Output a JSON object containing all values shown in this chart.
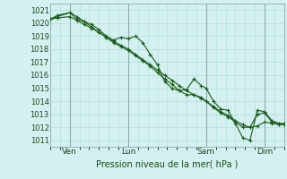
{
  "title": "",
  "xlabel": "Pression niveau de la mer( hPa )",
  "ylabel": "",
  "bg_color": "#d4f0f0",
  "grid_color": "#b0dede",
  "line_color": "#1a5c1a",
  "vline_color": "#8aacac",
  "ylim": [
    1010.5,
    1021.5
  ],
  "xlim": [
    0,
    96
  ],
  "yticks": [
    1011,
    1012,
    1013,
    1014,
    1015,
    1016,
    1017,
    1018,
    1019,
    1020,
    1021
  ],
  "xtick_positions": [
    8,
    32,
    64,
    88
  ],
  "xtick_labels": [
    "Ven",
    "Lun",
    "Sam",
    "Dim"
  ],
  "vlines": [
    8,
    32,
    64,
    88
  ],
  "series": [
    [
      0,
      1020.3,
      3,
      1020.4,
      8,
      1020.5,
      11,
      1020.2,
      14,
      1019.9,
      17,
      1019.6,
      20,
      1019.3,
      23,
      1018.9,
      26,
      1018.6,
      29,
      1018.3,
      32,
      1018.0,
      35,
      1017.6,
      38,
      1017.2,
      41,
      1016.8,
      44,
      1016.4,
      47,
      1016.0,
      50,
      1015.6,
      53,
      1015.2,
      56,
      1014.8,
      59,
      1014.5,
      62,
      1014.2,
      64,
      1014.0,
      67,
      1013.6,
      70,
      1013.2,
      73,
      1012.9,
      76,
      1012.5,
      79,
      1012.2,
      82,
      1012.0,
      85,
      1012.1,
      88,
      1012.4,
      91,
      1012.3,
      94,
      1012.2,
      96,
      1012.2
    ],
    [
      0,
      1020.3,
      3,
      1020.6,
      8,
      1020.8,
      11,
      1020.5,
      14,
      1020.1,
      17,
      1019.9,
      20,
      1019.5,
      23,
      1019.0,
      26,
      1018.7,
      29,
      1018.9,
      32,
      1018.8,
      35,
      1019.0,
      38,
      1018.5,
      41,
      1017.6,
      44,
      1016.8,
      47,
      1015.5,
      50,
      1015.0,
      53,
      1014.8,
      56,
      1014.9,
      59,
      1015.7,
      62,
      1015.2,
      64,
      1015.0,
      67,
      1014.0,
      70,
      1013.4,
      73,
      1013.3,
      76,
      1012.3,
      79,
      1011.2,
      82,
      1011.0,
      85,
      1013.3,
      88,
      1013.2,
      91,
      1012.5,
      94,
      1012.3,
      96,
      1012.3
    ],
    [
      0,
      1020.3,
      3,
      1020.5,
      8,
      1020.8,
      11,
      1020.3,
      14,
      1020.1,
      17,
      1019.7,
      20,
      1019.3,
      23,
      1018.9,
      26,
      1018.5,
      29,
      1018.2,
      32,
      1017.9,
      35,
      1017.5,
      38,
      1017.1,
      41,
      1016.7,
      44,
      1016.2,
      47,
      1015.7,
      50,
      1015.3,
      53,
      1014.8,
      56,
      1014.5,
      59,
      1014.5,
      62,
      1014.3,
      64,
      1014.0,
      67,
      1013.5,
      70,
      1013.1,
      73,
      1012.8,
      76,
      1012.4,
      79,
      1012.0,
      82,
      1012.0,
      85,
      1013.0,
      88,
      1013.1,
      91,
      1012.4,
      94,
      1012.2,
      96,
      1012.2
    ]
  ]
}
